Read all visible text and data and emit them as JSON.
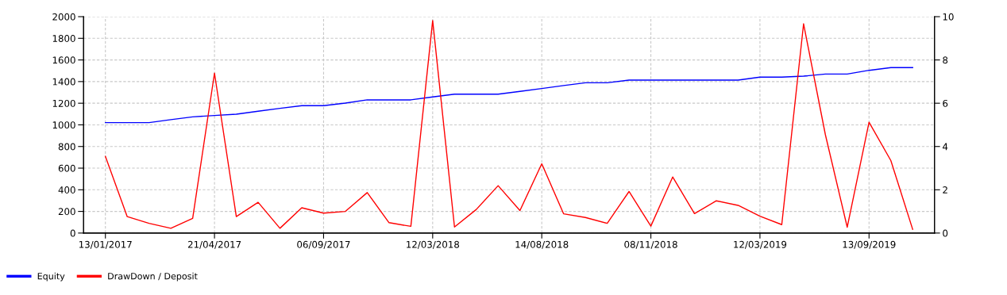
{
  "chart_data": {
    "type": "line",
    "categories": [
      "13/01/2017",
      null,
      null,
      null,
      null,
      "21/04/2017",
      null,
      null,
      null,
      null,
      "06/09/2017",
      null,
      null,
      null,
      null,
      "12/03/2018",
      null,
      null,
      null,
      null,
      "14/08/2018",
      null,
      null,
      null,
      null,
      "08/11/2018",
      null,
      null,
      null,
      null,
      "12/03/2019",
      null,
      null,
      null,
      null,
      "13/09/2019",
      null,
      null
    ],
    "series": [
      {
        "name": "Equity",
        "color": "#0000ff",
        "values": [
          1021,
          1021,
          1021,
          1048,
          1074,
          1087,
          1099,
          1126,
          1153,
          1177,
          1177,
          1201,
          1231,
          1231,
          1231,
          1258,
          1284,
          1284,
          1284,
          1309,
          1336,
          1363,
          1389,
          1389,
          1414,
          1414,
          1414,
          1414,
          1414,
          1414,
          1441,
          1441,
          1450,
          1470,
          1470,
          1504,
          1529,
          1529
        ]
      },
      {
        "name": "DrawDown / Deposit",
        "color": "#ff0000",
        "axis": "y2",
        "values": [
          3.54,
          0.76,
          0.45,
          0.22,
          0.68,
          7.39,
          0.76,
          1.42,
          0.22,
          1.17,
          0.92,
          1.0,
          1.87,
          0.48,
          0.31,
          9.82,
          0.28,
          1.09,
          2.19,
          1.04,
          3.2,
          0.89,
          0.72,
          0.45,
          1.92,
          0.32,
          2.59,
          0.9,
          1.49,
          1.28,
          0.78,
          0.39,
          9.67,
          4.54,
          0.27,
          5.12,
          3.35,
          0.17
        ]
      }
    ],
    "ylim": [
      0,
      2000
    ],
    "yticks": [
      0,
      200,
      400,
      600,
      800,
      1000,
      1200,
      1400,
      1600,
      1800,
      2000
    ],
    "y2lim": [
      0,
      10
    ],
    "y2ticks": [
      0,
      2,
      4,
      6,
      8,
      10
    ],
    "grid": true,
    "legend": "bottom left",
    "marker": "none",
    "line_style": "solid"
  }
}
